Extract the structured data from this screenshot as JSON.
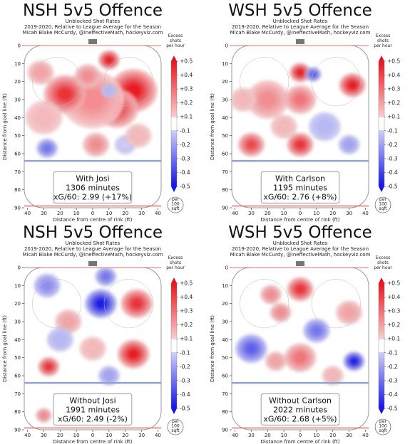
{
  "colorbar": {
    "label_lines": [
      "Excess",
      "shots",
      "per hour"
    ],
    "ticks": [
      "+0.5",
      "+0.4",
      "+0.3",
      "+0.2",
      "+0.1",
      "-0.1",
      "-0.2",
      "-0.3",
      "-0.4",
      "-0.5"
    ],
    "unit_lines": [
      "per",
      "100",
      "sqft"
    ],
    "colors": {
      "max": "#e8141c",
      "mid": "#ffffff",
      "min": "#1414e6"
    }
  },
  "x_axis": {
    "label": "Distance from centre of rink (ft)",
    "ticks": [
      "40",
      "30",
      "20",
      "10",
      "0",
      "10",
      "20",
      "30",
      "40"
    ]
  },
  "y_axis": {
    "label": "Distance from goal line (ft)",
    "ticks": [
      "0",
      "10",
      "20",
      "30",
      "40",
      "50",
      "60",
      "70",
      "80",
      "90"
    ]
  },
  "chart_data": [
    {
      "type": "heatmap",
      "title": "NSH 5v5 Offence",
      "subtitle_lines": [
        "Unblocked Shot Rates",
        "2019-2020, Relative to League Average for the Season",
        "Micah Blake McCurdy, @IneffectiveMath, hockeyviz.com"
      ],
      "box_lines": [
        "With Josi",
        "1306 minutes",
        "xG/60: 2.99 (+17%)"
      ],
      "xlim": [
        -42,
        42
      ],
      "ylim": [
        0,
        90
      ],
      "blobs": [
        {
          "x": 10,
          "y": 8,
          "v": 0.5,
          "s": 4
        },
        {
          "x": 25,
          "y": 25,
          "v": 0.5,
          "s": 9
        },
        {
          "x": 15,
          "y": 35,
          "v": 0.4,
          "s": 8
        },
        {
          "x": 0,
          "y": 30,
          "v": 0.25,
          "s": 12
        },
        {
          "x": -17,
          "y": 27,
          "v": 0.45,
          "s": 8
        },
        {
          "x": -3,
          "y": 17,
          "v": 0.25,
          "s": 5
        },
        {
          "x": -32,
          "y": 15,
          "v": 0.2,
          "s": 5
        },
        {
          "x": -30,
          "y": 40,
          "v": 0.15,
          "s": 7
        },
        {
          "x": 10,
          "y": 25,
          "v": -0.15,
          "s": 3
        },
        {
          "x": -28,
          "y": 57,
          "v": -0.3,
          "s": 4
        },
        {
          "x": 2,
          "y": 55,
          "v": 0.25,
          "s": 5
        },
        {
          "x": 20,
          "y": 55,
          "v": -0.1,
          "s": 4
        },
        {
          "x": 28,
          "y": 50,
          "v": 0.15,
          "s": 5
        }
      ]
    },
    {
      "type": "heatmap",
      "title": "WSH 5v5 Offence",
      "subtitle_lines": [
        "Unblocked Shot Rates",
        "2019-2020, Relative to League Average for the Season",
        "Micah Blake McCurdy, @IneffectiveMath, hockeyviz.com"
      ],
      "box_lines": [
        "With Carlson",
        "1195 minutes",
        "xG/60: 2.76 (+8%)"
      ],
      "xlim": [
        -42,
        42
      ],
      "ylim": [
        0,
        90
      ],
      "blobs": [
        {
          "x": 0,
          "y": 15,
          "v": 0.5,
          "s": 4
        },
        {
          "x": 8,
          "y": 16,
          "v": -0.35,
          "s": 3
        },
        {
          "x": -20,
          "y": 30,
          "v": 0.25,
          "s": 8
        },
        {
          "x": 32,
          "y": 22,
          "v": 0.5,
          "s": 5
        },
        {
          "x": 0,
          "y": 30,
          "v": 0.3,
          "s": 6
        },
        {
          "x": -35,
          "y": 30,
          "v": 0.15,
          "s": 5
        },
        {
          "x": -30,
          "y": 55,
          "v": 0.4,
          "s": 5
        },
        {
          "x": 0,
          "y": 55,
          "v": 0.45,
          "s": 5
        },
        {
          "x": 15,
          "y": 45,
          "v": -0.15,
          "s": 6
        },
        {
          "x": 30,
          "y": 55,
          "v": -0.2,
          "s": 4
        },
        {
          "x": -10,
          "y": 45,
          "v": 0.15,
          "s": 5
        }
      ]
    },
    {
      "type": "heatmap",
      "title": "NSH 5v5 Offence",
      "subtitle_lines": [
        "Unblocked Shot Rates",
        "2019-2020, Relative to League Average for the Season",
        "Micah Blake McCurdy, @IneffectiveMath, hockeyviz.com"
      ],
      "box_lines": [
        "Without Josi",
        "1991 minutes",
        "xG/60: 2.49 (-2%)"
      ],
      "xlim": [
        -42,
        42
      ],
      "ylim": [
        0,
        90
      ],
      "blobs": [
        {
          "x": 5,
          "y": 20,
          "v": -0.5,
          "s": 6
        },
        {
          "x": 8,
          "y": 5,
          "v": -0.3,
          "s": 4
        },
        {
          "x": 27,
          "y": 20,
          "v": 0.45,
          "s": 6
        },
        {
          "x": 25,
          "y": 48,
          "v": 0.5,
          "s": 6
        },
        {
          "x": -27,
          "y": 55,
          "v": 0.45,
          "s": 4
        },
        {
          "x": -28,
          "y": 10,
          "v": -0.25,
          "s": 5
        },
        {
          "x": -15,
          "y": 30,
          "v": 0.2,
          "s": 5
        },
        {
          "x": -20,
          "y": 40,
          "v": -0.15,
          "s": 5
        },
        {
          "x": 0,
          "y": 45,
          "v": 0.15,
          "s": 5
        },
        {
          "x": -30,
          "y": 82,
          "v": 0.25,
          "s": 3
        },
        {
          "x": 10,
          "y": 60,
          "v": -0.2,
          "s": 4
        }
      ]
    },
    {
      "type": "heatmap",
      "title": "WSH 5v5 Offence",
      "subtitle_lines": [
        "Unblocked Shot Rates",
        "2019-2020, Relative to League Average for the Season",
        "Micah Blake McCurdy, @IneffectiveMath, hockeyviz.com"
      ],
      "box_lines": [
        "Without Carlson",
        "2022 minutes",
        "xG/60: 2.68 (+5%)"
      ],
      "xlim": [
        -42,
        42
      ],
      "ylim": [
        0,
        90
      ],
      "blobs": [
        {
          "x": 0,
          "y": 12,
          "v": 0.45,
          "s": 5
        },
        {
          "x": -18,
          "y": 15,
          "v": 0.25,
          "s": 4
        },
        {
          "x": -12,
          "y": 25,
          "v": 0.25,
          "s": 4
        },
        {
          "x": 33,
          "y": 52,
          "v": -0.5,
          "s": 4
        },
        {
          "x": -30,
          "y": 45,
          "v": -0.35,
          "s": 6
        },
        {
          "x": 10,
          "y": 35,
          "v": -0.3,
          "s": 5
        },
        {
          "x": 0,
          "y": 50,
          "v": 0.3,
          "s": 6
        },
        {
          "x": -15,
          "y": 52,
          "v": 0.2,
          "s": 4
        },
        {
          "x": 30,
          "y": 25,
          "v": 0.2,
          "s": 5
        },
        {
          "x": 20,
          "y": 60,
          "v": 0.15,
          "s": 4
        }
      ]
    }
  ]
}
